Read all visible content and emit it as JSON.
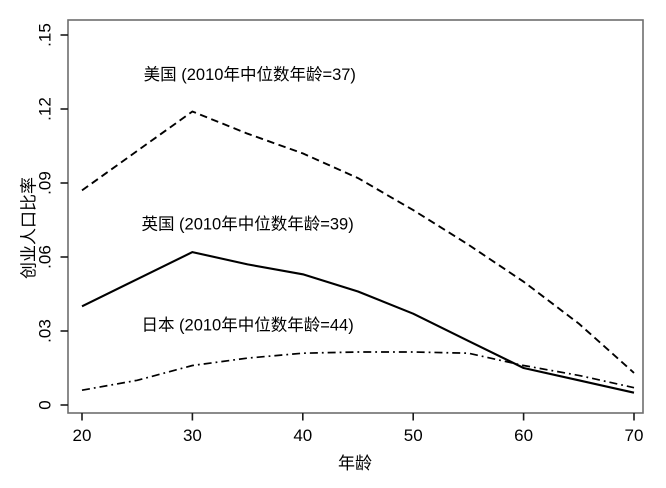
{
  "page": {
    "background": "#ffffff"
  },
  "chart_data": {
    "type": "line",
    "title": "",
    "xlabel": "年龄",
    "ylabel": "创业人口比率",
    "xlim": [
      20,
      70
    ],
    "ylim": [
      0,
      0.15
    ],
    "x_ticks": [
      20,
      30,
      40,
      50,
      60,
      70
    ],
    "x_tick_labels": [
      "20",
      "30",
      "40",
      "50",
      "60",
      "70"
    ],
    "y_ticks": [
      0,
      0.03,
      0.06,
      0.09,
      0.12,
      0.15
    ],
    "y_tick_labels": [
      "0",
      ".03",
      ".06",
      ".09",
      ".12",
      ".15"
    ],
    "grid": false,
    "legend_position": "none",
    "x": [
      20,
      25,
      30,
      35,
      40,
      45,
      50,
      55,
      60,
      65,
      70
    ],
    "series": [
      {
        "id": "us",
        "name": "美国",
        "median_age_2010": 37,
        "annotation": "美国 (2010年中位数年龄=37)",
        "line_style": "dashed",
        "values": [
          0.087,
          0.103,
          0.119,
          0.11,
          0.102,
          0.092,
          0.079,
          0.065,
          0.05,
          0.033,
          0.013
        ],
        "label_anchor": {
          "age": 35.2,
          "value": 0.1335
        }
      },
      {
        "id": "uk",
        "name": "英国",
        "median_age_2010": 39,
        "annotation": "英国 (2010年中位数年龄=39)",
        "line_style": "solid",
        "values": [
          0.04,
          0.051,
          0.062,
          0.057,
          0.053,
          0.046,
          0.037,
          0.026,
          0.015,
          0.01,
          0.005
        ],
        "label_anchor": {
          "age": 35.0,
          "value": 0.073
        }
      },
      {
        "id": "japan",
        "name": "日本",
        "median_age_2010": 44,
        "annotation": "日本 (2010年中位数年龄=44)",
        "line_style": "dash-dot",
        "values": [
          0.006,
          0.01,
          0.016,
          0.019,
          0.021,
          0.0215,
          0.0215,
          0.021,
          0.016,
          0.012,
          0.007
        ],
        "label_anchor": {
          "age": 35.0,
          "value": 0.032
        }
      }
    ],
    "colors": {
      "line": "#000000",
      "frame": "#6e6e6e",
      "tick": "#1a1a1a",
      "text": "#000000",
      "background": "#ffffff"
    }
  }
}
